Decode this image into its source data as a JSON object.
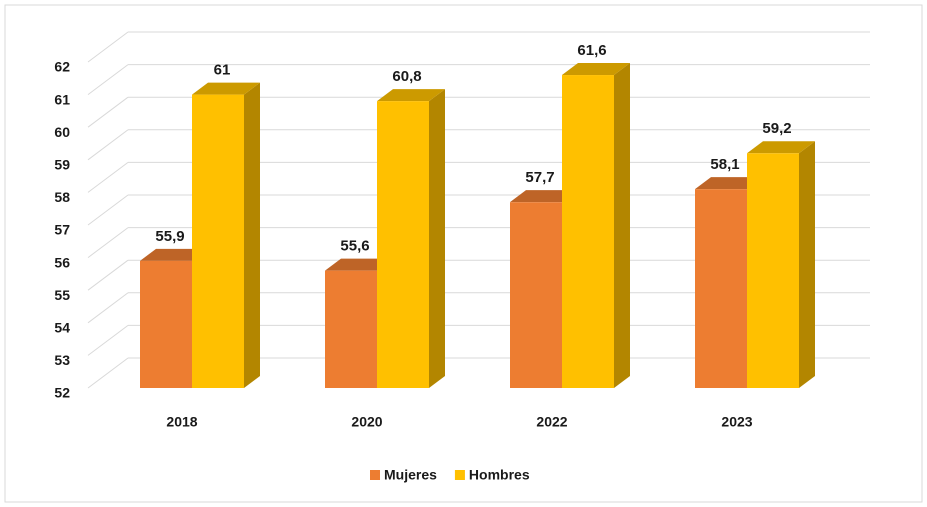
{
  "chart_data": {
    "type": "bar3d",
    "categories": [
      "2018",
      "2020",
      "2022",
      "2023"
    ],
    "series": [
      {
        "name": "Mujeres",
        "color": "#ED7D31",
        "values": [
          55.9,
          55.6,
          57.7,
          58.1
        ],
        "value_labels": [
          "55,9",
          "55,6",
          "57,7",
          "58,1"
        ]
      },
      {
        "name": "Hombres",
        "color": "#FFC000",
        "values": [
          61,
          60.8,
          61.6,
          59.2
        ],
        "value_labels": [
          "61",
          "60,8",
          "61,6",
          "59,2"
        ]
      }
    ],
    "ylim": [
      52,
      62
    ],
    "yticks": [
      52,
      53,
      54,
      55,
      56,
      57,
      58,
      59,
      60,
      61,
      62
    ],
    "grid": true,
    "legend": "bottom"
  }
}
